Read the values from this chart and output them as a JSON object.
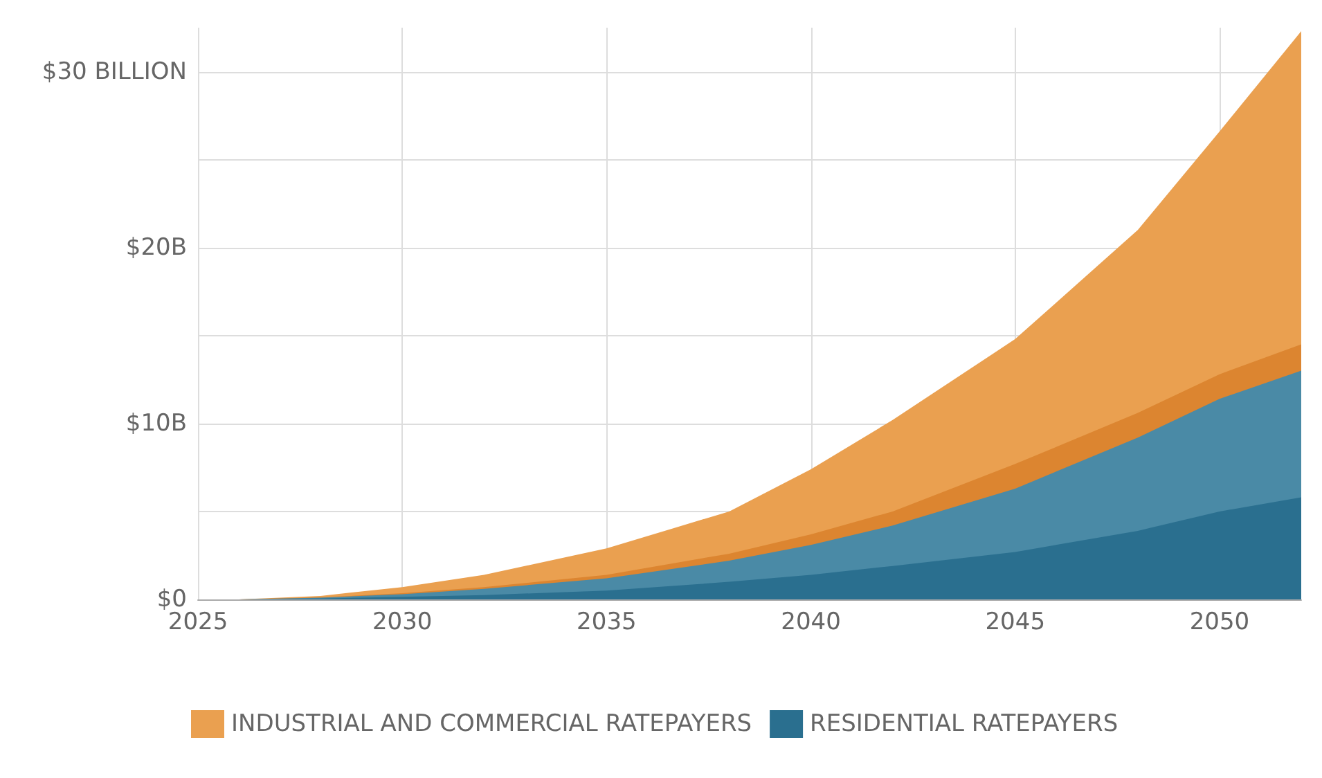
{
  "chart_data": {
    "type": "area",
    "stacked": true,
    "x": [
      2026,
      2028,
      2030,
      2032,
      2035,
      2038,
      2040,
      2042,
      2045,
      2048,
      2050,
      2052
    ],
    "series": [
      {
        "name": "RESIDENTIAL RATEPAYERS",
        "color": "#2a6f8f",
        "values": [
          0,
          0.05,
          0.15,
          0.25,
          0.5,
          1.0,
          1.4,
          1.9,
          2.7,
          3.9,
          5.0,
          5.8
        ]
      },
      {
        "color": "#4a8aa6",
        "values": [
          0,
          0.05,
          0.15,
          0.35,
          0.7,
          1.2,
          1.7,
          2.3,
          3.6,
          5.3,
          6.4,
          7.2
        ]
      },
      {
        "color": "#dc8530",
        "values": [
          0,
          0.02,
          0.05,
          0.1,
          0.2,
          0.4,
          0.6,
          0.8,
          1.4,
          1.4,
          1.4,
          1.5
        ]
      },
      {
        "name": "INDUSTRIAL AND COMMERCIAL RATEPAYERS",
        "color": "#eaa050",
        "values": [
          0,
          0.08,
          0.35,
          0.7,
          1.5,
          2.4,
          3.7,
          5.2,
          7.1,
          10.4,
          13.8,
          17.8
        ]
      }
    ],
    "xlim": [
      2025,
      2052
    ],
    "xticks": [
      2025,
      2030,
      2035,
      2040,
      2045,
      2050
    ],
    "ylim": [
      0,
      32.5
    ],
    "yticks": [
      {
        "value": 0,
        "label": "$0"
      },
      {
        "value": 5,
        "label": null
      },
      {
        "value": 10,
        "label": "$10B"
      },
      {
        "value": 15,
        "label": null
      },
      {
        "value": 20,
        "label": "$20B"
      },
      {
        "value": 25,
        "label": null
      },
      {
        "value": 30,
        "label": "$30 BILLION"
      }
    ],
    "grid": true,
    "legend": "bottom left"
  }
}
